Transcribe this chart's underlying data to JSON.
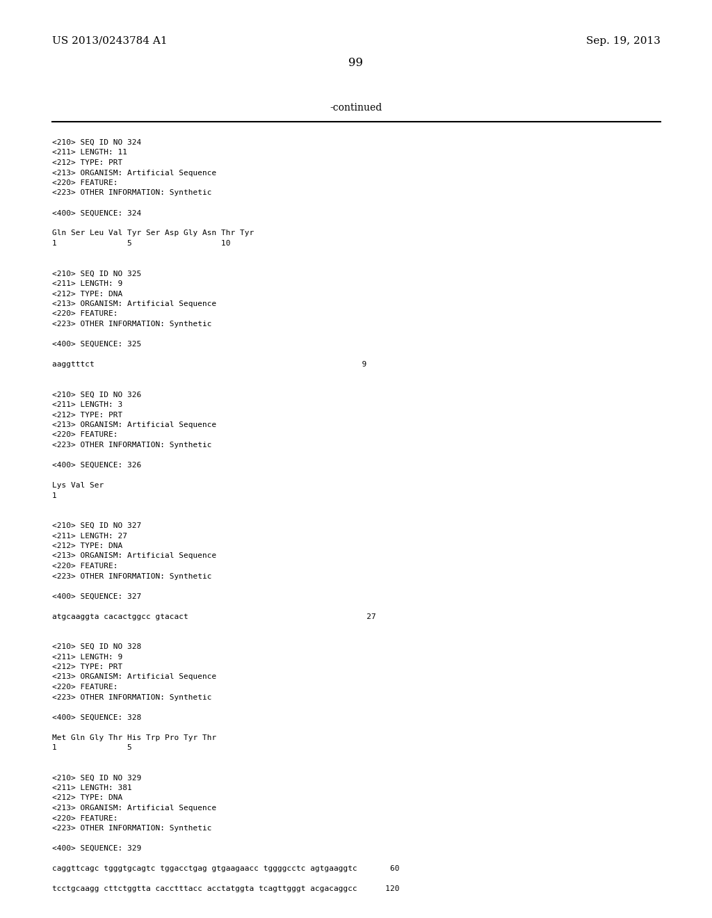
{
  "bg_color": "#ffffff",
  "header_left": "US 2013/0243784 A1",
  "header_right": "Sep. 19, 2013",
  "page_number": "99",
  "continued_text": "-continued",
  "content": [
    "<210> SEQ ID NO 324",
    "<211> LENGTH: 11",
    "<212> TYPE: PRT",
    "<213> ORGANISM: Artificial Sequence",
    "<220> FEATURE:",
    "<223> OTHER INFORMATION: Synthetic",
    "",
    "<400> SEQUENCE: 324",
    "",
    "Gln Ser Leu Val Tyr Ser Asp Gly Asn Thr Tyr",
    "1               5                   10",
    "",
    "",
    "<210> SEQ ID NO 325",
    "<211> LENGTH: 9",
    "<212> TYPE: DNA",
    "<213> ORGANISM: Artificial Sequence",
    "<220> FEATURE:",
    "<223> OTHER INFORMATION: Synthetic",
    "",
    "<400> SEQUENCE: 325",
    "",
    "aaggtttct                                                         9",
    "",
    "",
    "<210> SEQ ID NO 326",
    "<211> LENGTH: 3",
    "<212> TYPE: PRT",
    "<213> ORGANISM: Artificial Sequence",
    "<220> FEATURE:",
    "<223> OTHER INFORMATION: Synthetic",
    "",
    "<400> SEQUENCE: 326",
    "",
    "Lys Val Ser",
    "1",
    "",
    "",
    "<210> SEQ ID NO 327",
    "<211> LENGTH: 27",
    "<212> TYPE: DNA",
    "<213> ORGANISM: Artificial Sequence",
    "<220> FEATURE:",
    "<223> OTHER INFORMATION: Synthetic",
    "",
    "<400> SEQUENCE: 327",
    "",
    "atgcaaggta cacactggcc gtacact                                      27",
    "",
    "",
    "<210> SEQ ID NO 328",
    "<211> LENGTH: 9",
    "<212> TYPE: PRT",
    "<213> ORGANISM: Artificial Sequence",
    "<220> FEATURE:",
    "<223> OTHER INFORMATION: Synthetic",
    "",
    "<400> SEQUENCE: 328",
    "",
    "Met Gln Gly Thr His Trp Pro Tyr Thr",
    "1               5",
    "",
    "",
    "<210> SEQ ID NO 329",
    "<211> LENGTH: 381",
    "<212> TYPE: DNA",
    "<213> ORGANISM: Artificial Sequence",
    "<220> FEATURE:",
    "<223> OTHER INFORMATION: Synthetic",
    "",
    "<400> SEQUENCE: 329",
    "",
    "caggttcagc tgggtgcagtc tggacctgag gtgaagaacc tggggcctc agtgaaggtc       60",
    "",
    "tcctgcaagg cttctggtta cacctttacc acctatggta tcagttgggt acgacaggcc      120"
  ]
}
